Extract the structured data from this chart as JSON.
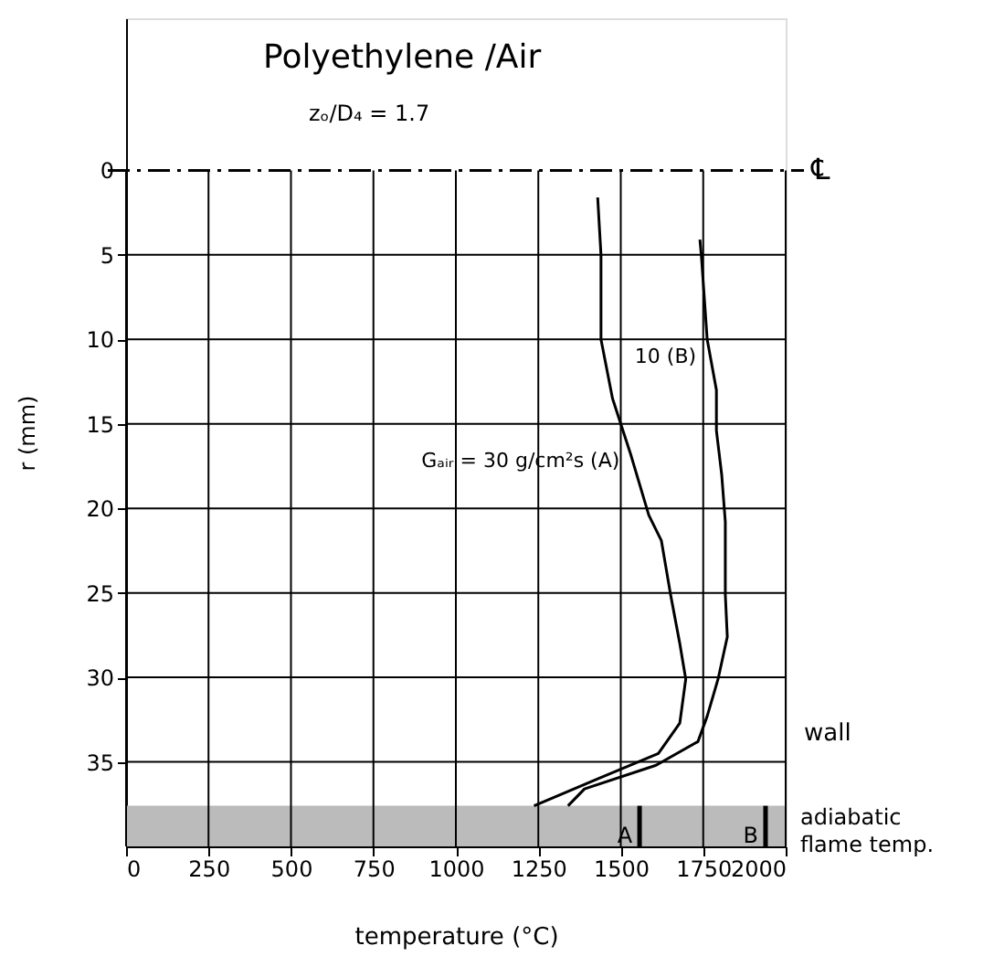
{
  "chart_data": {
    "type": "line",
    "title": "Polyethylene /Air",
    "subtitle": "zₒ/D₄ = 1.7",
    "xlabel": "temperature (°C)",
    "ylabel": "r (mm)",
    "xlim": [
      0,
      2000
    ],
    "xticks": [
      0,
      250,
      500,
      750,
      1000,
      1250,
      1500,
      1750,
      2000
    ],
    "ylim": [
      40,
      -9
    ],
    "yticks": [
      0,
      5,
      10,
      15,
      20,
      25,
      30,
      35
    ],
    "grid": true,
    "legend": false,
    "line_style": "solid",
    "marker": "none",
    "series": [
      {
        "name": "Gₐᵢᵣ = 30 g/cm²s (A)",
        "color": "#000000",
        "x": [
          1430,
          1440,
          1440,
          1475,
          1530,
          1585,
          1623,
          1651,
          1679,
          1697,
          1679,
          1614,
          1430,
          1237
        ],
        "values": [
          1.6,
          5,
          10,
          13.5,
          16.8,
          20.4,
          21.9,
          25.1,
          28,
          30.1,
          32.7,
          34.5,
          36,
          37.6
        ]
      },
      {
        "name": "10 (B)",
        "color": "#000000",
        "x": [
          1740,
          1745,
          1762,
          1790,
          1790,
          1806,
          1817,
          1817,
          1823,
          1795,
          1762,
          1734,
          1607,
          1390,
          1340
        ],
        "values": [
          4.1,
          5.2,
          10,
          13,
          15.4,
          18,
          20.8,
          25.1,
          27.6,
          30.1,
          32.3,
          33.8,
          35.2,
          36.6,
          37.6
        ]
      }
    ],
    "ref_lines": [
      {
        "axis": "y",
        "value": 0,
        "label": "℄",
        "color": "#000000",
        "line_style": "dashed"
      },
      {
        "axis": "x",
        "value": 1557,
        "label": "A",
        "color": "#000000"
      },
      {
        "axis": "x",
        "value": 1939,
        "label": "B",
        "color": "#000000"
      }
    ],
    "bands": [
      {
        "axis": "y",
        "from": 37.6,
        "to": 40,
        "label": "wall",
        "color": "#bbbbbb"
      }
    ],
    "annotations": [
      "adiabatic flame temp."
    ]
  }
}
